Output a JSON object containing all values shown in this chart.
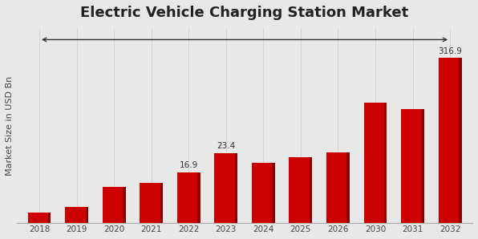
{
  "title": "Electric Vehicle Charging Station Market",
  "ylabel": "Market Size in USD Bn",
  "categories": [
    "2018",
    "2019",
    "2020",
    "2021",
    "2022",
    "2023",
    "2024",
    "2025",
    "2026",
    "2030",
    "2031",
    "2032"
  ],
  "values": [
    3.5,
    5.5,
    12.0,
    13.5,
    16.9,
    23.4,
    20.0,
    22.0,
    23.5,
    40.0,
    38.0,
    316.9
  ],
  "display_values": [
    3.5,
    5.5,
    12.0,
    13.5,
    16.9,
    23.4,
    20.0,
    22.0,
    23.5,
    40.0,
    38.0,
    55.0
  ],
  "bar_color_light": "#cc0000",
  "bar_color_dark": "#8b0000",
  "background_color": "#e8e8e8",
  "annotated_indices": [
    4,
    5,
    11
  ],
  "annotated_labels": [
    "16.9",
    "23.4",
    "316.9"
  ],
  "title_fontsize": 13,
  "ylabel_fontsize": 8,
  "tick_fontsize": 7.5,
  "annotation_fontsize": 7.5,
  "ylim_max": 65
}
